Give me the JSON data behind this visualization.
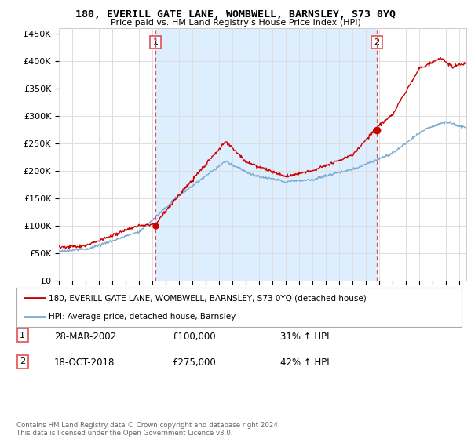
{
  "title": "180, EVERILL GATE LANE, WOMBWELL, BARNSLEY, S73 0YQ",
  "subtitle": "Price paid vs. HM Land Registry's House Price Index (HPI)",
  "ylabel_ticks": [
    "£0",
    "£50K",
    "£100K",
    "£150K",
    "£200K",
    "£250K",
    "£300K",
    "£350K",
    "£400K",
    "£450K"
  ],
  "ytick_values": [
    0,
    50000,
    100000,
    150000,
    200000,
    250000,
    300000,
    350000,
    400000,
    450000
  ],
  "ylim": [
    0,
    460000
  ],
  "xlim_start": 1995.0,
  "xlim_end": 2025.5,
  "vline1_x": 2002.23,
  "vline2_x": 2018.8,
  "point1_x": 2002.23,
  "point1_y": 100000,
  "point2_x": 2018.8,
  "point2_y": 275000,
  "legend_line1": "180, EVERILL GATE LANE, WOMBWELL, BARNSLEY, S73 0YQ (detached house)",
  "legend_line2": "HPI: Average price, detached house, Barnsley",
  "table_row1": [
    "1",
    "28-MAR-2002",
    "£100,000",
    "31% ↑ HPI"
  ],
  "table_row2": [
    "2",
    "18-OCT-2018",
    "£275,000",
    "42% ↑ HPI"
  ],
  "footer": "Contains HM Land Registry data © Crown copyright and database right 2024.\nThis data is licensed under the Open Government Licence v3.0.",
  "red_color": "#cc0000",
  "blue_color": "#7aaacf",
  "vline_color": "#e05050",
  "fill_color": "#ddeeff",
  "bg_color": "#ffffff",
  "grid_color": "#dddddd"
}
